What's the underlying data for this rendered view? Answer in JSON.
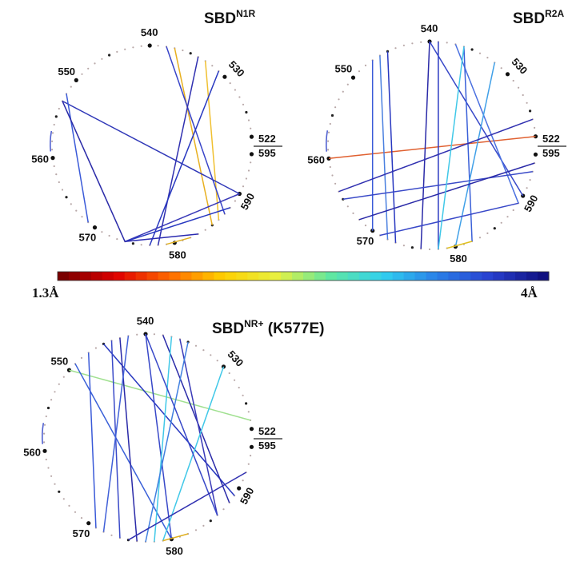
{
  "panels": [
    {
      "id": "n1r",
      "title_main": "SBD",
      "title_sup": "N1R",
      "title_suffix": "",
      "labels": [
        "540",
        "530",
        "550",
        "560",
        "570",
        "580",
        "590"
      ],
      "label_522": "522",
      "label_595": "595",
      "edges": [
        {
          "from": 537,
          "to": 585,
          "c": "#e8b020"
        },
        {
          "from": 533,
          "to": 586,
          "c": "#f0c030"
        },
        {
          "from": 538,
          "to": 587,
          "c": "#3844c8"
        },
        {
          "from": 534,
          "to": 578,
          "c": "#3030b0"
        },
        {
          "from": 531,
          "to": 577,
          "c": "#2838c0"
        },
        {
          "from": 553,
          "to": 590,
          "c": "#3038b8"
        },
        {
          "from": 552,
          "to": 569,
          "c": "#3a5ad8"
        },
        {
          "from": 553,
          "to": 574,
          "c": "#2a2aa8"
        },
        {
          "from": 574,
          "to": 590,
          "c": "#3a3ab8"
        },
        {
          "from": 574,
          "to": 588,
          "c": "#2838c0"
        },
        {
          "from": 574,
          "to": 583,
          "c": "#2a2ab0"
        },
        {
          "from": 579,
          "to": 582,
          "c": "#e0b020"
        },
        {
          "from": 558,
          "to": 558,
          "c": "#5060d0"
        }
      ]
    },
    {
      "id": "r2a",
      "title_main": "SBD",
      "title_sup": "R2A",
      "title_suffix": "",
      "labels": [
        "540",
        "530",
        "550",
        "560",
        "570",
        "580",
        "590"
      ],
      "label_522": "522",
      "label_595": "595",
      "edges": [
        {
          "from": 560,
          "to": 522,
          "c": "#e06030"
        },
        {
          "from": 540,
          "to": 576,
          "c": "#2a2aa8"
        },
        {
          "from": 539,
          "to": 578,
          "c": "#2838c0"
        },
        {
          "from": 540,
          "to": 590,
          "c": "#3848c8"
        },
        {
          "from": 537,
          "to": 589,
          "c": "#4a70e0"
        },
        {
          "from": 536,
          "to": 582,
          "c": "#3a60d8"
        },
        {
          "from": 532,
          "to": 580,
          "c": "#40a0e8"
        },
        {
          "from": 547,
          "to": 570,
          "c": "#3a5ad8"
        },
        {
          "from": 546,
          "to": 572,
          "c": "#4a80e0"
        },
        {
          "from": 545,
          "to": 573,
          "c": "#2838c0"
        },
        {
          "from": 564,
          "to": 524,
          "c": "#3030b0"
        },
        {
          "from": 565,
          "to": 593,
          "c": "#3a4ac8"
        },
        {
          "from": 568,
          "to": 594,
          "c": "#2a2aa8"
        },
        {
          "from": 571,
          "to": 589,
          "c": "#3848c8"
        },
        {
          "from": 536,
          "to": 578,
          "c": "#40c8e8"
        },
        {
          "from": 579,
          "to": 582,
          "c": "#e0c020"
        },
        {
          "from": 558,
          "to": 558,
          "c": "#5060d0"
        }
      ]
    },
    {
      "id": "nrp",
      "title_main": "SBD",
      "title_sup": "NR+",
      "title_suffix": " (K577E)",
      "labels": [
        "540",
        "530",
        "550",
        "560",
        "570",
        "580",
        "590"
      ],
      "label_522": "522",
      "label_595": "595",
      "edges": [
        {
          "from": 550,
          "to": 523,
          "c": "#a0e090"
        },
        {
          "from": 549,
          "to": 580,
          "c": "#3a60d8"
        },
        {
          "from": 547,
          "to": 571,
          "c": "#3a5ad8"
        },
        {
          "from": 545,
          "to": 589,
          "c": "#2838c0"
        },
        {
          "from": 544,
          "to": 574,
          "c": "#3a4ac8"
        },
        {
          "from": 543,
          "to": 576,
          "c": "#2a2aa8"
        },
        {
          "from": 542,
          "to": 572,
          "c": "#4060d8"
        },
        {
          "from": 540,
          "to": 580,
          "c": "#3848c8"
        },
        {
          "from": 538,
          "to": 588,
          "c": "#2a2aa8"
        },
        {
          "from": 537,
          "to": 578,
          "c": "#40c8e8"
        },
        {
          "from": 536,
          "to": 586,
          "c": "#3a3ab8"
        },
        {
          "from": 535,
          "to": 577,
          "c": "#4080e0"
        },
        {
          "from": 530,
          "to": 579,
          "c": "#40c8e8"
        },
        {
          "from": 540,
          "to": 586,
          "c": "#3848c8"
        },
        {
          "from": 575,
          "to": 592,
          "c": "#3030b0"
        },
        {
          "from": 579,
          "to": 582,
          "c": "#e0b020"
        },
        {
          "from": 558,
          "to": 558,
          "c": "#5060d0"
        }
      ]
    }
  ],
  "colorbar": {
    "min_label": "1.3Å",
    "max_label": "4Å",
    "stops": [
      "#7a0000",
      "#e00000",
      "#ff6a00",
      "#ffd000",
      "#e8f040",
      "#60e8a0",
      "#30d0f0",
      "#2a80e8",
      "#2840d0",
      "#101080"
    ]
  }
}
